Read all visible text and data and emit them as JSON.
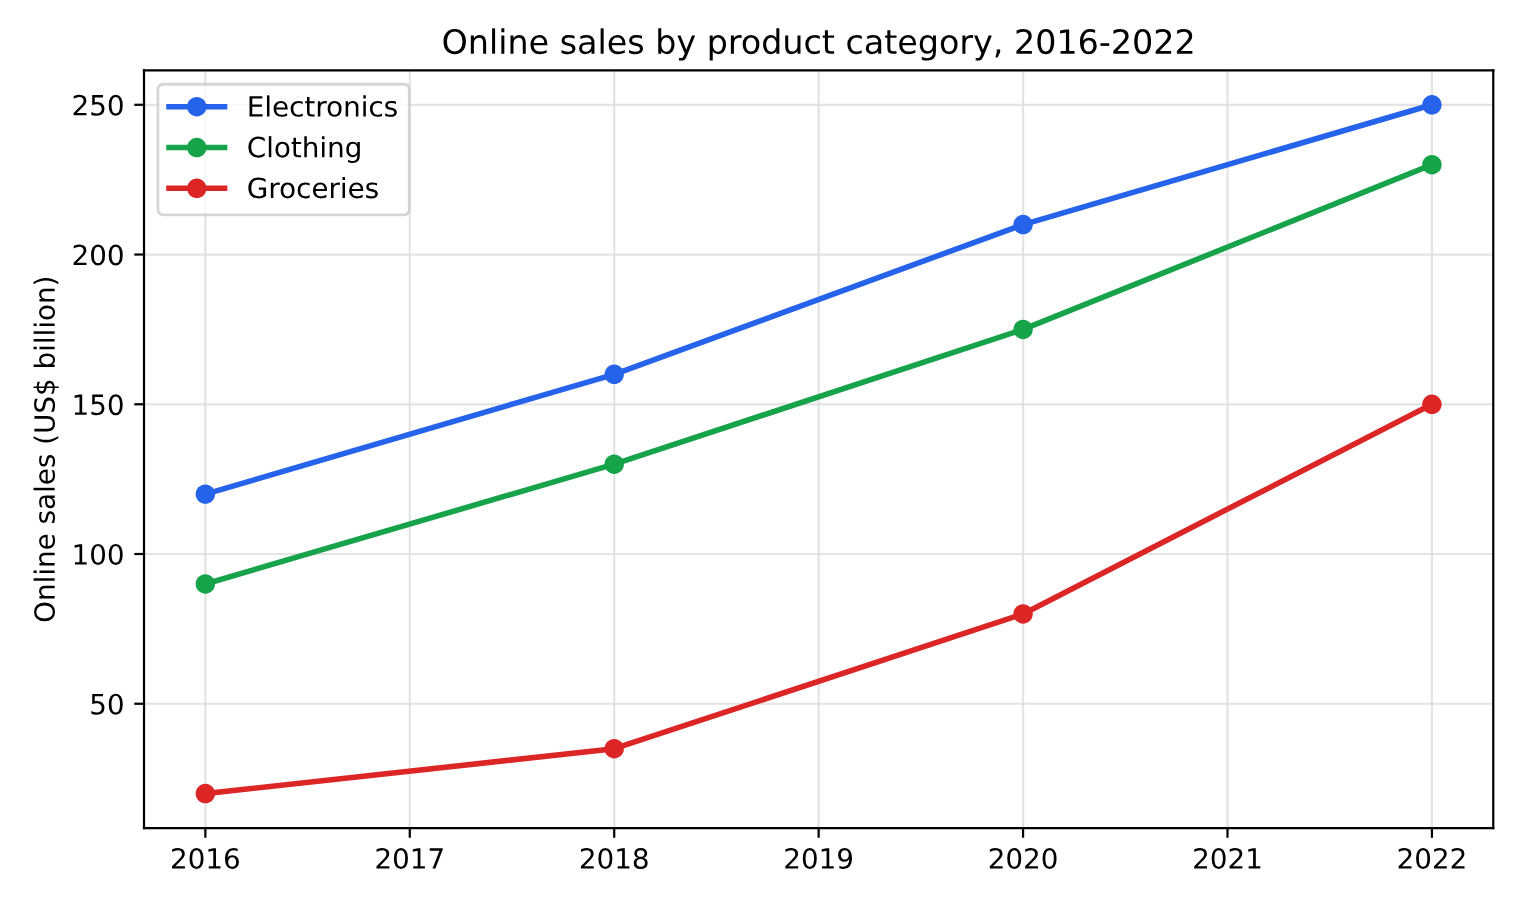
{
  "chart_data": {
    "type": "line",
    "title": "Online sales by product category, 2016-2022",
    "ylabel": "Online sales (US$ billion)",
    "x": [
      2016,
      2018,
      2020,
      2022
    ],
    "series": [
      {
        "name": "Electronics",
        "color": "#2563eb",
        "values": [
          120,
          160,
          210,
          250
        ]
      },
      {
        "name": "Clothing",
        "color": "#16a34a",
        "values": [
          90,
          130,
          175,
          230
        ]
      },
      {
        "name": "Groceries",
        "color": "#dc2626",
        "values": [
          20,
          35,
          80,
          150
        ]
      }
    ],
    "xlim": [
      2015.7,
      2022.3
    ],
    "xticks": [
      2016,
      2017,
      2018,
      2019,
      2020,
      2021,
      2022
    ],
    "ylim": [
      8.5,
      261.5
    ],
    "yticks": [
      50,
      100,
      150,
      200,
      250
    ],
    "grid": true,
    "legend": "top left",
    "marker": "circle",
    "line_style": "solid"
  }
}
